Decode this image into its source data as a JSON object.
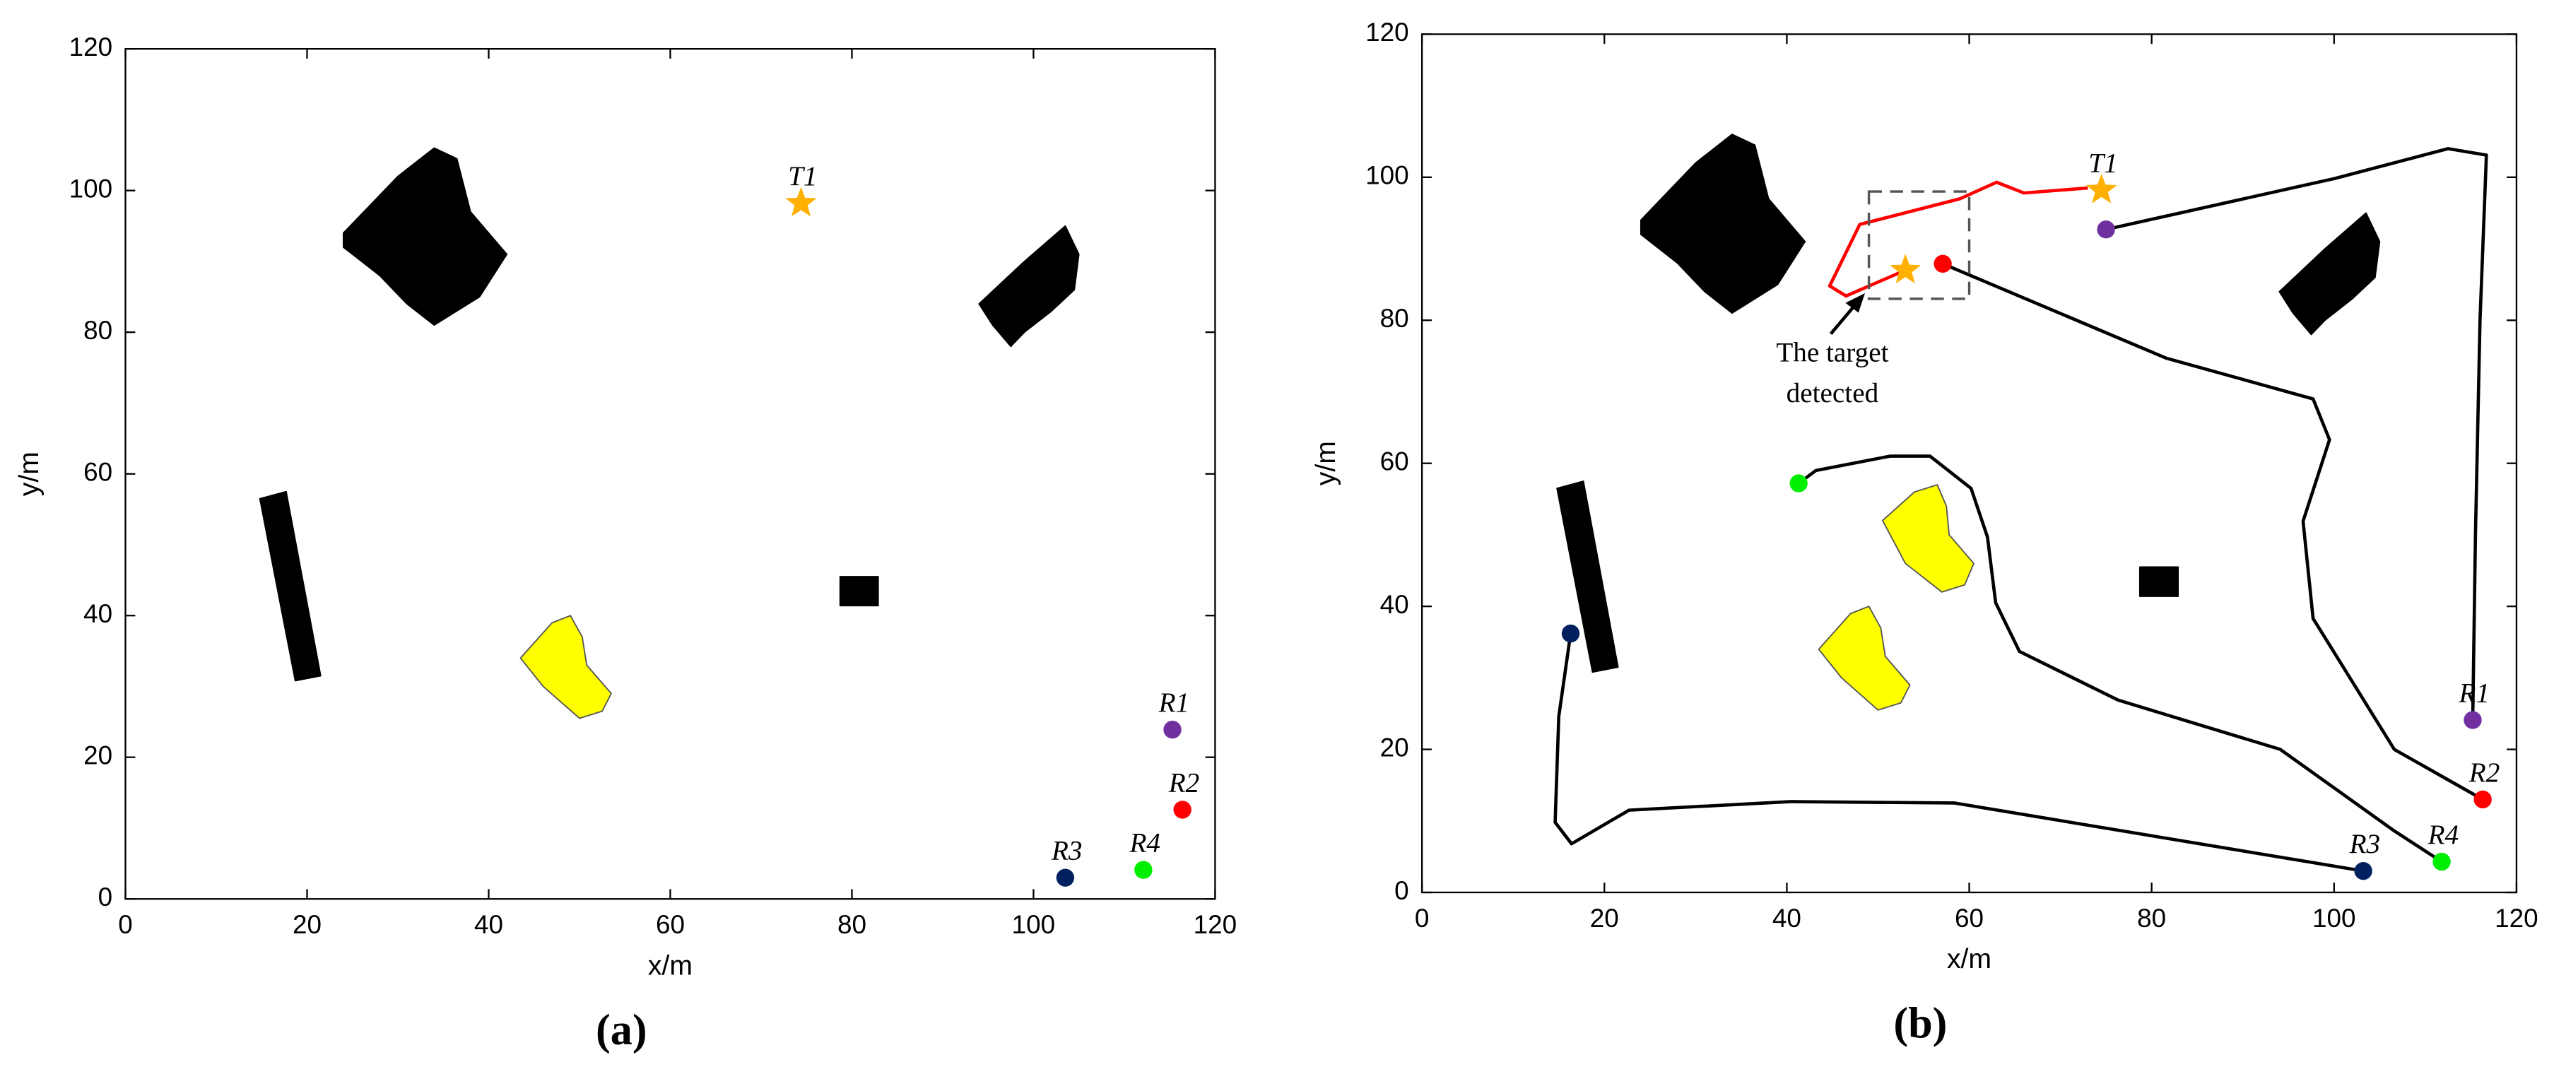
{
  "chart_data": [
    {
      "type": "scatter",
      "caption": "(a)",
      "xlabel": "x/m",
      "ylabel": "y/m",
      "xlim": [
        0,
        120
      ],
      "ylim": [
        0,
        120
      ],
      "xticks": [
        0,
        20,
        40,
        60,
        80,
        100,
        120
      ],
      "yticks": [
        0,
        20,
        40,
        60,
        80,
        100,
        120
      ],
      "series": [
        {
          "name": "T1",
          "marker": "star",
          "color": "#ffb000",
          "x": [
            74.4
          ],
          "values": [
            98.2
          ]
        },
        {
          "name": "R1",
          "marker": "circle",
          "color": "#7030a0",
          "x": [
            115.3
          ],
          "values": [
            23.9
          ]
        },
        {
          "name": "R2",
          "marker": "circle",
          "color": "#ff0000",
          "x": [
            116.4
          ],
          "values": [
            12.6
          ]
        },
        {
          "name": "R3",
          "marker": "circle",
          "color": "#002060",
          "x": [
            103.5
          ],
          "values": [
            3.0
          ]
        },
        {
          "name": "R4",
          "marker": "circle",
          "color": "#00ee00",
          "x": [
            112.1
          ],
          "values": [
            4.1
          ]
        }
      ]
    },
    {
      "type": "scatter",
      "caption": "(b)",
      "xlabel": "x/m",
      "ylabel": "y/m",
      "xlim": [
        0,
        120
      ],
      "ylim": [
        0,
        120
      ],
      "xticks": [
        0,
        20,
        40,
        60,
        80,
        100,
        120
      ],
      "yticks": [
        0,
        20,
        40,
        60,
        80,
        100,
        120
      ],
      "annotation": [
        "The target",
        "detected"
      ],
      "series": [
        {
          "name": "T1",
          "marker": "star",
          "color": "#ffb000",
          "x": [
            74.5,
            53.0
          ],
          "values": [
            98.2,
            87.0
          ]
        },
        {
          "name": "R1",
          "marker": "circle",
          "color": "#7030a0",
          "x": [
            115.2,
            75.0
          ],
          "values": [
            24.1,
            92.7
          ]
        },
        {
          "name": "R2",
          "marker": "circle",
          "color": "#ff0000",
          "x": [
            116.3,
            57.1
          ],
          "values": [
            13.0,
            87.9
          ]
        },
        {
          "name": "R3",
          "marker": "circle",
          "color": "#002060",
          "x": [
            103.2,
            16.3
          ],
          "values": [
            3.0,
            36.2
          ]
        },
        {
          "name": "R4",
          "marker": "circle",
          "color": "#00ee00",
          "x": [
            111.8,
            41.3
          ],
          "values": [
            4.3,
            57.2
          ]
        }
      ],
      "paths": [
        {
          "color": "#000000",
          "x": [
            115.2,
            115.5,
            116.0,
            116.7,
            112.5,
            100.0,
            75.0
          ],
          "y": [
            24.1,
            50.0,
            80.0,
            103.1,
            104.0,
            99.8,
            92.7
          ]
        },
        {
          "color": "#000000",
          "x": [
            116.3,
            106.6,
            97.7,
            96.6,
            99.5,
            97.7,
            81.6,
            57.1
          ],
          "y": [
            13.0,
            20.0,
            38.3,
            51.9,
            63.3,
            69.0,
            74.7,
            87.9
          ]
        },
        {
          "color": "#000000",
          "x": [
            103.2,
            58.4,
            40.5,
            22.7,
            16.4,
            14.6,
            15.0,
            16.3
          ],
          "y": [
            3.0,
            12.5,
            12.7,
            11.5,
            6.8,
            9.8,
            24.6,
            36.2
          ]
        },
        {
          "color": "#000000",
          "x": [
            111.8,
            106.6,
            94.1,
            76.3,
            65.5,
            62.9,
            62.0,
            60.2,
            55.7,
            51.3,
            43.2,
            41.3
          ],
          "y": [
            4.3,
            8.6,
            20.0,
            26.9,
            33.7,
            40.5,
            49.7,
            56.5,
            61.0,
            61.0,
            59.0,
            57.2
          ]
        },
        {
          "color": "#ff0000",
          "x": [
            73.0,
            66.0,
            63.0,
            59.0,
            48.0,
            44.7,
            46.5,
            53.0
          ],
          "y": [
            98.5,
            97.8,
            99.3,
            97.0,
            93.4,
            84.8,
            83.4,
            87.0
          ]
        }
      ]
    }
  ]
}
